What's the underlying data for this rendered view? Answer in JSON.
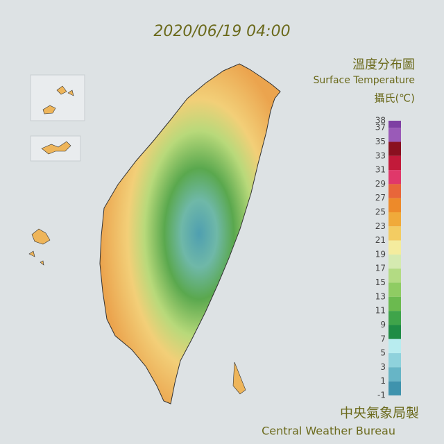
{
  "header": {
    "timestamp": "2020/06/19 04:00"
  },
  "legend": {
    "title": "溫度分布圖",
    "subtitle": "Surface Temperature",
    "unit": "攝氏(℃)",
    "ticks": [
      38,
      37,
      35,
      33,
      31,
      29,
      27,
      25,
      23,
      21,
      19,
      17,
      15,
      13,
      11,
      9,
      7,
      5,
      3,
      1,
      -1
    ],
    "colors": [
      "#7e3fa3",
      "#9a5ab8",
      "#8a1020",
      "#c21a3a",
      "#e0386a",
      "#e8663a",
      "#ed8a2a",
      "#f0aa3a",
      "#f3cc62",
      "#f4ec9e",
      "#d5eab0",
      "#b3db83",
      "#8fcc63",
      "#6bba4f",
      "#3fa44a",
      "#1f8c45",
      "#b8ecef",
      "#8fd2dc",
      "#67b5c6",
      "#3f93ad",
      "#267689"
    ]
  },
  "footer": {
    "title": "中央氣象局製",
    "subtitle": "Central Weather Bureau"
  }
}
